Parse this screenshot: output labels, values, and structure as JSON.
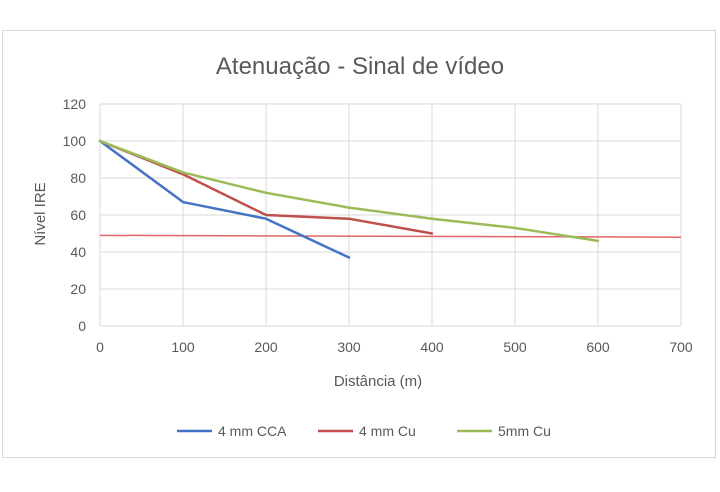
{
  "chart_data": {
    "type": "line",
    "title": "Atenuação - Sinal de vídeo",
    "xlabel": "Distância (m)",
    "ylabel": "Nível IRE",
    "xlim": [
      0,
      700
    ],
    "ylim": [
      0,
      120
    ],
    "x_ticks": [
      0,
      100,
      200,
      300,
      400,
      500,
      600,
      700
    ],
    "y_ticks": [
      0,
      20,
      40,
      60,
      80,
      100,
      120
    ],
    "grid": true,
    "legend_position": "bottom",
    "series": [
      {
        "name": "4 mm CCA",
        "color": "#4472c4",
        "x": [
          0,
          100,
          200,
          300
        ],
        "y": [
          100,
          67,
          58,
          37
        ]
      },
      {
        "name": "4 mm Cu",
        "color": "#c0504d",
        "x": [
          0,
          100,
          200,
          300,
          400
        ],
        "y": [
          100,
          82,
          60,
          58,
          50
        ]
      },
      {
        "name": "5mm Cu",
        "color": "#9bbb59",
        "x": [
          0,
          100,
          200,
          300,
          400,
          500,
          600
        ],
        "y": [
          100,
          83,
          72,
          64,
          58,
          53,
          46
        ]
      }
    ],
    "reference_line": {
      "color": "#e06666",
      "x": [
        0,
        700
      ],
      "y": [
        49,
        48
      ]
    }
  }
}
